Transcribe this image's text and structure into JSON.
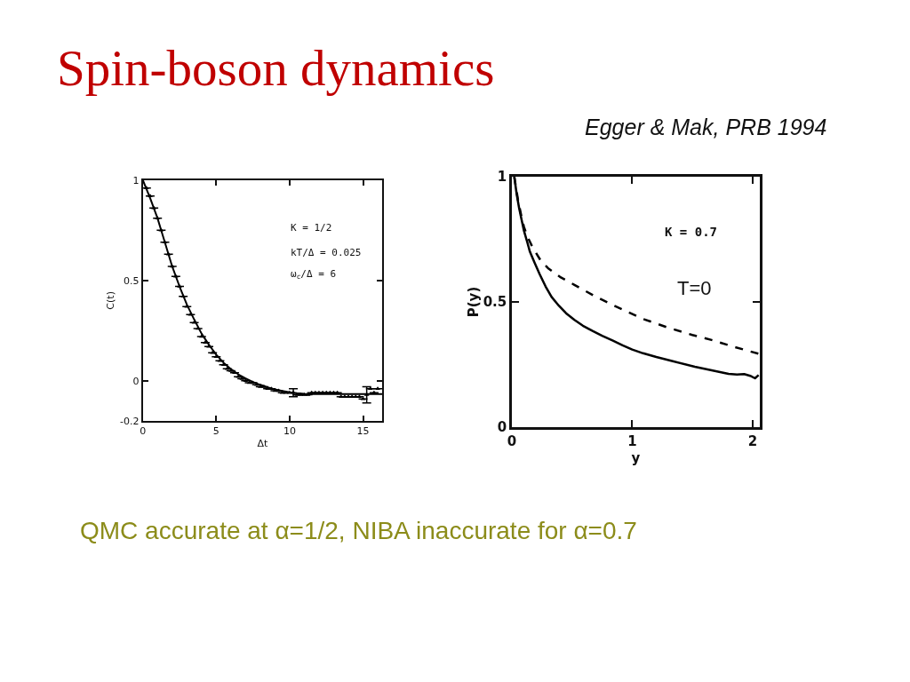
{
  "chart_data": [
    {
      "type": "other",
      "title": "Spin-boson dynamics",
      "subtitle": "Egger & Mak, PRB 1994",
      "annotations": [
        "QMC accurate at α=1/2, NIBA inaccurate for α=0.7"
      ]
    },
    {
      "type": "line",
      "xlabel": "Δt",
      "ylabel": "C(t)",
      "xlim": [
        0,
        16.3
      ],
      "xticks": [
        0,
        5,
        10,
        15
      ],
      "ylim": [
        -0.2,
        1
      ],
      "yticks": [
        -0.2,
        0,
        0.5,
        1
      ],
      "annotations": [
        "K = 1/2",
        "kT/Δ = 0.025",
        "ω$_{c}$/Δ = 6"
      ],
      "series": [
        {
          "type": "line",
          "color": "#000000",
          "x": [
            0,
            0.5,
            1,
            1.5,
            2,
            2.5,
            3,
            3.5,
            4,
            4.5,
            5,
            5.5,
            6,
            6.5,
            7,
            7.5,
            8,
            8.5,
            9,
            9.5,
            10,
            10.5,
            11,
            11.5,
            16.3
          ],
          "values": [
            1,
            0.91,
            0.81,
            0.69,
            0.57,
            0.47,
            0.38,
            0.305,
            0.235,
            0.18,
            0.13,
            0.09,
            0.058,
            0.032,
            0.012,
            -0.006,
            -0.02,
            -0.033,
            -0.043,
            -0.051,
            -0.057,
            -0.062,
            -0.065,
            -0.066,
            -0.066
          ]
        },
        {
          "type": "scatter",
          "marker": "triangle",
          "color": "#000000",
          "x": [
            0.25,
            0.5,
            0.75,
            1,
            1.25,
            1.5,
            1.75,
            2,
            2.25,
            2.5,
            2.75,
            3,
            3.25,
            3.5,
            3.75,
            4,
            4.25,
            4.5,
            4.75,
            5,
            5.25,
            5.5,
            5.75,
            6,
            6.25,
            6.5,
            6.75,
            7,
            7.25,
            7.5,
            7.75,
            8,
            8.25,
            8.5,
            8.75,
            9,
            9.25,
            9.5,
            9.75,
            10,
            10.25,
            10.5,
            10.75,
            11,
            11.25,
            11.5,
            11.75,
            12,
            12.25,
            12.5,
            12.75,
            13,
            13.25,
            13.5,
            13.75,
            14,
            14.25,
            14.5,
            14.75,
            15,
            15.25,
            15.5,
            15.75,
            16
          ],
          "values": [
            0.96,
            0.92,
            0.86,
            0.81,
            0.75,
            0.69,
            0.63,
            0.57,
            0.52,
            0.47,
            0.42,
            0.37,
            0.33,
            0.29,
            0.26,
            0.22,
            0.19,
            0.17,
            0.14,
            0.12,
            0.1,
            0.08,
            0.06,
            0.05,
            0.04,
            0.02,
            0.01,
            0,
            -0.01,
            -0.01,
            -0.02,
            -0.03,
            -0.03,
            -0.04,
            -0.04,
            -0.05,
            -0.05,
            -0.06,
            -0.06,
            -0.06,
            -0.06,
            -0.07,
            -0.07,
            -0.07,
            -0.07,
            -0.06,
            -0.06,
            -0.06,
            -0.06,
            -0.06,
            -0.06,
            -0.06,
            -0.06,
            -0.08,
            -0.08,
            -0.08,
            -0.08,
            -0.08,
            -0.08,
            -0.09,
            -0.07,
            -0.04,
            -0.06,
            -0.04
          ],
          "errors": [
            null,
            null,
            null,
            null,
            null,
            null,
            null,
            null,
            null,
            null,
            null,
            null,
            null,
            null,
            null,
            null,
            null,
            null,
            null,
            null,
            null,
            null,
            null,
            null,
            null,
            null,
            null,
            null,
            null,
            null,
            null,
            null,
            null,
            null,
            null,
            null,
            null,
            null,
            null,
            null,
            0.02,
            null,
            null,
            null,
            null,
            null,
            null,
            null,
            null,
            null,
            null,
            null,
            null,
            null,
            null,
            null,
            null,
            null,
            null,
            null,
            0.04,
            null,
            null,
            null
          ]
        }
      ]
    },
    {
      "type": "line",
      "xlabel": "y",
      "ylabel": "P(y)",
      "xlim": [
        0,
        2.06
      ],
      "xticks": [
        0,
        1,
        2
      ],
      "ylim": [
        0,
        1
      ],
      "yticks": [
        0,
        0.5,
        1
      ],
      "annotations": [
        "K = 0.7",
        "T=0"
      ],
      "series": [
        {
          "type": "line",
          "color": "#000000",
          "x": [
            0.02,
            0.04,
            0.06,
            0.08,
            0.1,
            0.13,
            0.15,
            0.19,
            0.23,
            0.28,
            0.33,
            0.39,
            0.45,
            0.52,
            0.59,
            0.67,
            0.75,
            0.84,
            0.92,
            1,
            1.09,
            1.2,
            1.33,
            1.52,
            1.66,
            1.8,
            1.87,
            1.93,
            1.98,
            2.02,
            2.05
          ],
          "values": [
            1,
            0.93,
            0.875,
            0.83,
            0.785,
            0.735,
            0.7,
            0.655,
            0.612,
            0.562,
            0.52,
            0.485,
            0.455,
            0.428,
            0.405,
            0.384,
            0.365,
            0.345,
            0.327,
            0.31,
            0.295,
            0.28,
            0.264,
            0.241,
            0.227,
            0.213,
            0.21,
            0.212,
            0.205,
            0.195,
            0.208
          ]
        },
        {
          "type": "line",
          "line_style": "dashed",
          "color": "#000000",
          "x": [
            0.02,
            0.05,
            0.08,
            0.1,
            0.13,
            0.17,
            0.24,
            0.3,
            0.4,
            0.52,
            0.7,
            0.85,
            1.09,
            1.3,
            1.5,
            1.66,
            1.85,
            2.05
          ],
          "values": [
            1,
            0.91,
            0.84,
            0.8,
            0.76,
            0.72,
            0.665,
            0.635,
            0.6,
            0.568,
            0.52,
            0.485,
            0.432,
            0.397,
            0.368,
            0.348,
            0.32,
            0.293
          ]
        }
      ]
    }
  ]
}
